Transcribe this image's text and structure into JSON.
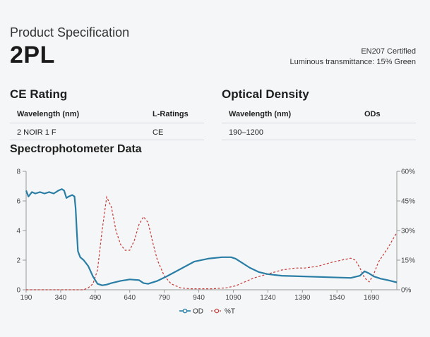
{
  "header": {
    "kicker": "Product Specification",
    "model": "2PL",
    "cert_line1": "EN207 Certified",
    "cert_line2": "Luminous transmittance: 15% Green"
  },
  "ce_rating": {
    "title": "CE Rating",
    "headers": [
      "Wavelength (nm)",
      "L-Ratings"
    ],
    "rows": [
      [
        "2 NOIR 1 F",
        "CE"
      ]
    ]
  },
  "optical_density": {
    "title": "Optical Density",
    "headers": [
      "Wavelength (nm)",
      "ODs"
    ],
    "rows": [
      [
        "190–1200",
        ""
      ]
    ]
  },
  "chart_title": "Spectrophotometer Data",
  "chart_data": {
    "type": "line",
    "title": "Spectrophotometer Data",
    "xlim": [
      190,
      1800
    ],
    "xticks": [
      190,
      340,
      490,
      640,
      790,
      940,
      1090,
      1240,
      1390,
      1540,
      1690
    ],
    "ylim_left": [
      0,
      8
    ],
    "yticks_left": [
      0,
      2,
      4,
      6,
      8
    ],
    "ylim_right": [
      0,
      60
    ],
    "yticks_right": [
      "0%",
      "15%",
      "30%",
      "45%",
      "60%"
    ],
    "legend": [
      "OD",
      "%T"
    ],
    "colors": {
      "od": "#2a7ea5",
      "t": "#c83a36",
      "axis": "#999999"
    },
    "series": [
      {
        "name": "OD",
        "axis": "left",
        "x": [
          190,
          200,
          215,
          230,
          250,
          270,
          290,
          310,
          330,
          345,
          355,
          365,
          375,
          390,
          400,
          405,
          410,
          415,
          425,
          440,
          460,
          480,
          500,
          520,
          540,
          560,
          600,
          640,
          680,
          700,
          720,
          760,
          800,
          860,
          920,
          980,
          1040,
          1080,
          1100,
          1130,
          1160,
          1200,
          1240,
          1300,
          1400,
          1500,
          1600,
          1640,
          1660,
          1680,
          1700,
          1730,
          1760,
          1800
        ],
        "y": [
          6.7,
          6.3,
          6.6,
          6.5,
          6.6,
          6.5,
          6.6,
          6.5,
          6.7,
          6.8,
          6.7,
          6.2,
          6.3,
          6.4,
          6.3,
          5.5,
          4.0,
          2.6,
          2.2,
          2.0,
          1.6,
          0.9,
          0.4,
          0.3,
          0.35,
          0.45,
          0.6,
          0.7,
          0.65,
          0.45,
          0.4,
          0.6,
          0.9,
          1.4,
          1.9,
          2.1,
          2.2,
          2.2,
          2.1,
          1.8,
          1.5,
          1.2,
          1.05,
          0.95,
          0.9,
          0.85,
          0.8,
          0.95,
          1.25,
          1.1,
          0.9,
          0.75,
          0.65,
          0.5
        ]
      },
      {
        "name": "%T",
        "axis": "right",
        "x": [
          190,
          300,
          400,
          440,
          460,
          480,
          500,
          520,
          540,
          560,
          580,
          600,
          620,
          640,
          660,
          680,
          700,
          720,
          740,
          760,
          790,
          820,
          860,
          900,
          940,
          1000,
          1060,
          1100,
          1140,
          1180,
          1240,
          1300,
          1360,
          1400,
          1460,
          1520,
          1560,
          1600,
          1620,
          1640,
          1660,
          1680,
          1700,
          1720,
          1760,
          1800
        ],
        "y": [
          0,
          0,
          0,
          0,
          1,
          3,
          10,
          30,
          47,
          42,
          30,
          23,
          20,
          20,
          25,
          33,
          37,
          34,
          24,
          15,
          7,
          3,
          1,
          0.5,
          0.5,
          0.5,
          1,
          2,
          4,
          6,
          8,
          10,
          11,
          11,
          12,
          14,
          15,
          16,
          15,
          11,
          6,
          4,
          8,
          14,
          21,
          29
        ]
      }
    ]
  }
}
